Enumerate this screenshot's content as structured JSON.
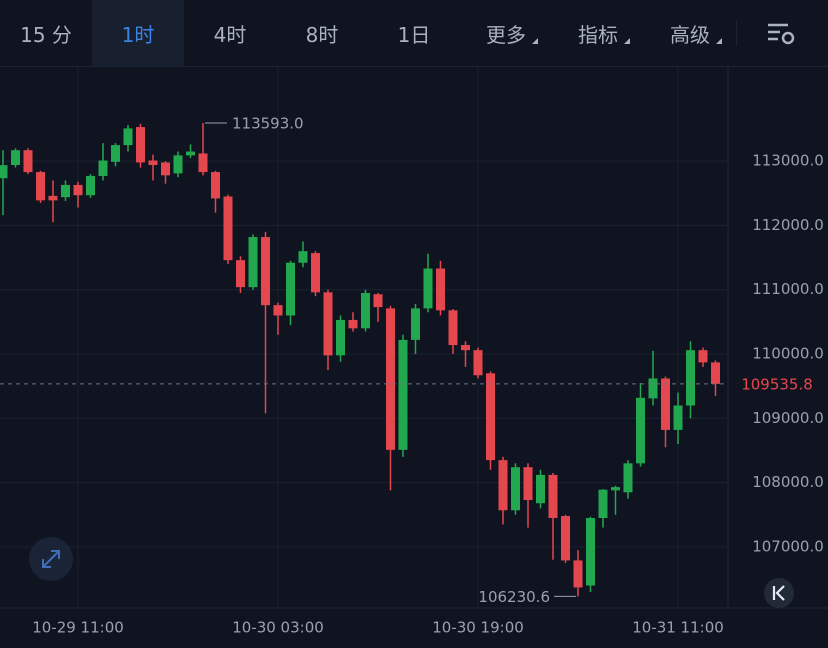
{
  "tabs": [
    "15 分",
    "1时",
    "4时",
    "8时",
    "1日",
    "更多",
    "指标",
    "高级"
  ],
  "chart_data": {
    "type": "candlestick",
    "categories": [
      null,
      null,
      null,
      null,
      null,
      null,
      "10-29 11:00",
      null,
      null,
      null,
      null,
      null,
      null,
      null,
      null,
      null,
      null,
      null,
      null,
      null,
      null,
      null,
      "10-30 03:00",
      null,
      null,
      null,
      null,
      null,
      null,
      null,
      null,
      null,
      null,
      null,
      null,
      null,
      null,
      null,
      "10-30 19:00",
      null,
      null,
      null,
      null,
      null,
      null,
      null,
      null,
      null,
      null,
      null,
      null,
      null,
      null,
      null,
      "10-31 11:00",
      null,
      null,
      null
    ],
    "open": [
      112735,
      112940,
      113170,
      112830,
      112460,
      112440,
      112630,
      112470,
      112770,
      112990,
      113250,
      113530,
      113010,
      112980,
      112810,
      113090,
      113120,
      112830,
      112450,
      111460,
      111040,
      111820,
      110760,
      110600,
      111420,
      111570,
      110960,
      109980,
      110530,
      110400,
      110930,
      110710,
      108510,
      110220,
      110710,
      111330,
      110680,
      110140,
      110060,
      109700,
      108350,
      107570,
      108240,
      107680,
      108120,
      107480,
      106790,
      106400,
      107450,
      107880,
      107850,
      108300,
      109310,
      109620,
      108820,
      109200,
      110060,
      109870
    ],
    "high": [
      113171,
      113200,
      113200,
      112850,
      112700,
      112700,
      112680,
      112800,
      113280,
      113280,
      113560,
      113580,
      113100,
      113000,
      113150,
      113260,
      113593,
      112850,
      112480,
      111520,
      111860,
      111900,
      110800,
      111450,
      111750,
      111600,
      111000,
      110600,
      110650,
      111000,
      110950,
      110750,
      110300,
      110780,
      111560,
      111450,
      110700,
      110200,
      110100,
      109730,
      108400,
      108300,
      108300,
      108200,
      108150,
      107500,
      106950,
      107470,
      107900,
      107950,
      108350,
      109550,
      110050,
      109650,
      109400,
      110200,
      110100,
      109900
    ],
    "low": [
      112160,
      112900,
      112800,
      112350,
      112050,
      112380,
      112280,
      112430,
      112700,
      112920,
      113150,
      112900,
      112700,
      112650,
      112750,
      113050,
      112780,
      112200,
      111400,
      110950,
      111000,
      109080,
      110300,
      110450,
      111350,
      110900,
      109750,
      109880,
      110350,
      110350,
      110500,
      107880,
      108400,
      110000,
      110650,
      110600,
      110000,
      109800,
      109620,
      108200,
      107350,
      107500,
      107300,
      107600,
      106800,
      106750,
      106230.6,
      106300,
      107300,
      107500,
      107750,
      108250,
      109200,
      108550,
      108600,
      109000,
      109800,
      109350
    ],
    "close": [
      112938,
      113170,
      112830,
      112390,
      112390,
      112630,
      112470,
      112770,
      113010,
      113250,
      113510,
      112980,
      112940,
      112780,
      113090,
      113150,
      112830,
      112420,
      111460,
      111040,
      111820,
      110760,
      110600,
      111420,
      111600,
      110960,
      109980,
      110530,
      110400,
      110950,
      110730,
      108510,
      110220,
      110710,
      111330,
      110680,
      110140,
      110060,
      109670,
      108350,
      107570,
      108240,
      107730,
      108120,
      107450,
      106790,
      106370,
      107450,
      107890,
      107930,
      108300,
      109320,
      109620,
      108820,
      109200,
      110060,
      109870,
      109535.8
    ],
    "up_color": "#22a94f",
    "down_color": "#e5474f",
    "ylim": [
      106050,
      114480
    ],
    "yticks": [
      {
        "value": 107000,
        "label": "107000.0"
      },
      {
        "value": 108000,
        "label": "108000.0"
      },
      {
        "value": 109000,
        "label": "109000.0"
      },
      {
        "value": 110000,
        "label": "110000.0"
      },
      {
        "value": 111000,
        "label": "111000.0"
      },
      {
        "value": 112000,
        "label": "112000.0"
      },
      {
        "value": 113000,
        "label": "113000.0"
      }
    ],
    "grid": true,
    "last_price": {
      "value": 109535.8,
      "label": "109535.8"
    },
    "max_label": {
      "value": 113593,
      "label": "113593.0",
      "index": 16
    },
    "min_label": {
      "value": 106230.6,
      "label": "106230.6",
      "index": 46
    }
  }
}
